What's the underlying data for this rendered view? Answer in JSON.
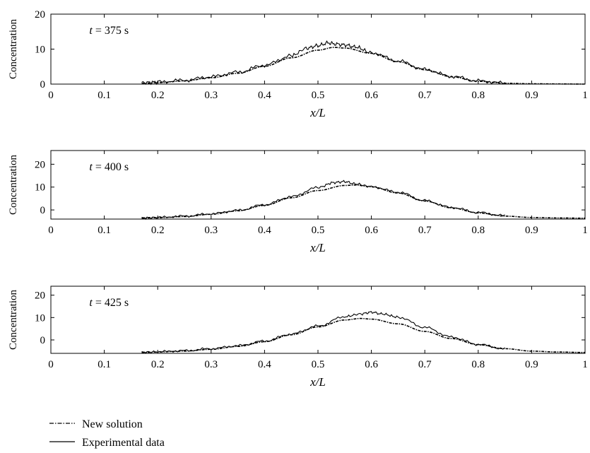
{
  "chart_data": [
    {
      "type": "line",
      "annotation": {
        "var": "t",
        "value": "= 375 s"
      },
      "xlabel": "x/L",
      "ylabel": "Concentration",
      "xlim": [
        0,
        1
      ],
      "ylim": [
        0,
        20
      ],
      "xticks": [
        "0",
        "0.1",
        "0.2",
        "0.3",
        "0.4",
        "0.5",
        "0.6",
        "0.7",
        "0.8",
        "0.9",
        "1"
      ],
      "yticks": [
        {
          "value": 0,
          "label": "0"
        },
        {
          "value": 10,
          "label": "10"
        },
        {
          "value": 20,
          "label": "20"
        }
      ],
      "grid": false,
      "series": [
        {
          "name": "New solution",
          "style": "dash-dot",
          "x": [
            0.17,
            0.2,
            0.25,
            0.3,
            0.35,
            0.4,
            0.45,
            0.5,
            0.53,
            0.55,
            0.6,
            0.65,
            0.7,
            0.75,
            0.8,
            0.85,
            0.9,
            0.95,
            1.0
          ],
          "y": [
            0.2,
            0.4,
            0.9,
            1.8,
            3.1,
            5.1,
            7.5,
            9.7,
            10.5,
            10.3,
            8.8,
            6.4,
            4.1,
            2.1,
            0.8,
            0.25,
            0.1,
            0.05,
            0.0
          ]
        },
        {
          "name": "Experimental data",
          "style": "solid",
          "x": [
            0.17,
            0.2,
            0.25,
            0.3,
            0.35,
            0.4,
            0.45,
            0.48,
            0.5,
            0.52,
            0.53,
            0.55,
            0.57,
            0.6,
            0.65,
            0.7,
            0.75,
            0.8,
            0.85
          ],
          "y": [
            0.4,
            0.6,
            1.1,
            2.1,
            3.4,
            5.4,
            8.1,
            10.3,
            11.0,
            11.8,
            11.5,
            11.2,
            10.6,
            9.0,
            6.6,
            4.2,
            2.2,
            0.9,
            0.3
          ]
        }
      ]
    },
    {
      "type": "line",
      "annotation": {
        "var": "t",
        "value": "= 400 s"
      },
      "xlabel": "x/L",
      "ylabel": "Concentration",
      "xlim": [
        0,
        1
      ],
      "ylim": [
        -4,
        26
      ],
      "xticks": [
        "0",
        "0.1",
        "0.2",
        "0.3",
        "0.4",
        "0.5",
        "0.6",
        "0.7",
        "0.8",
        "0.9",
        "1"
      ],
      "yticks": [
        {
          "value": 0,
          "label": "0"
        },
        {
          "value": 10,
          "label": "10"
        },
        {
          "value": 20,
          "label": "20"
        }
      ],
      "grid": false,
      "series": [
        {
          "name": "New solution",
          "style": "dash-dot",
          "x": [
            0.17,
            0.2,
            0.25,
            0.3,
            0.35,
            0.4,
            0.45,
            0.5,
            0.55,
            0.57,
            0.6,
            0.65,
            0.7,
            0.75,
            0.8,
            0.85,
            0.9,
            0.95,
            1.0
          ],
          "y": [
            -3.6,
            -3.4,
            -2.9,
            -1.9,
            -0.4,
            2.0,
            5.3,
            8.5,
            10.7,
            10.9,
            10.1,
            7.4,
            3.9,
            0.9,
            -1.3,
            -2.7,
            -3.3,
            -3.5,
            -3.6
          ]
        },
        {
          "name": "Experimental data",
          "style": "solid",
          "x": [
            0.17,
            0.2,
            0.25,
            0.3,
            0.35,
            0.4,
            0.45,
            0.5,
            0.53,
            0.55,
            0.57,
            0.6,
            0.65,
            0.7,
            0.75,
            0.8,
            0.85
          ],
          "y": [
            -3.5,
            -3.3,
            -2.7,
            -1.7,
            -0.2,
            2.3,
            5.8,
            9.8,
            12.0,
            12.4,
            11.4,
            10.2,
            7.8,
            4.1,
            1.1,
            -1.1,
            -2.5
          ]
        }
      ]
    },
    {
      "type": "line",
      "annotation": {
        "var": "t",
        "value": "= 425 s"
      },
      "xlabel": "x/L",
      "ylabel": "Concentration",
      "xlim": [
        0,
        1
      ],
      "ylim": [
        -6,
        24
      ],
      "xticks": [
        "0",
        "0.1",
        "0.2",
        "0.3",
        "0.4",
        "0.5",
        "0.6",
        "0.7",
        "0.8",
        "0.9",
        "1"
      ],
      "yticks": [
        {
          "value": 0,
          "label": "0"
        },
        {
          "value": 10,
          "label": "10"
        },
        {
          "value": 20,
          "label": "20"
        }
      ],
      "grid": false,
      "series": [
        {
          "name": "New solution",
          "style": "dash-dot",
          "x": [
            0.17,
            0.2,
            0.25,
            0.3,
            0.35,
            0.4,
            0.45,
            0.5,
            0.55,
            0.58,
            0.6,
            0.65,
            0.7,
            0.75,
            0.8,
            0.85,
            0.9,
            0.95,
            1.0
          ],
          "y": [
            -5.6,
            -5.4,
            -5.0,
            -4.2,
            -2.9,
            -0.8,
            2.3,
            5.8,
            8.9,
            9.6,
            9.3,
            7.2,
            3.8,
            0.6,
            -2.1,
            -3.9,
            -5.0,
            -5.4,
            -5.6
          ]
        },
        {
          "name": "Experimental data",
          "style": "solid",
          "x": [
            0.17,
            0.2,
            0.25,
            0.3,
            0.35,
            0.4,
            0.45,
            0.5,
            0.55,
            0.58,
            0.6,
            0.62,
            0.65,
            0.7,
            0.75,
            0.8,
            0.85
          ],
          "y": [
            -5.5,
            -5.3,
            -4.8,
            -3.9,
            -2.6,
            -0.5,
            2.6,
            6.2,
            10.4,
            11.6,
            12.4,
            11.6,
            10.2,
            5.6,
            1.3,
            -2.0,
            -4.0
          ]
        }
      ]
    }
  ],
  "legend": {
    "position": "bottom-left",
    "items": [
      {
        "label": "New solution",
        "style": "dash-dot"
      },
      {
        "label": "Experimental data",
        "style": "solid"
      }
    ]
  }
}
